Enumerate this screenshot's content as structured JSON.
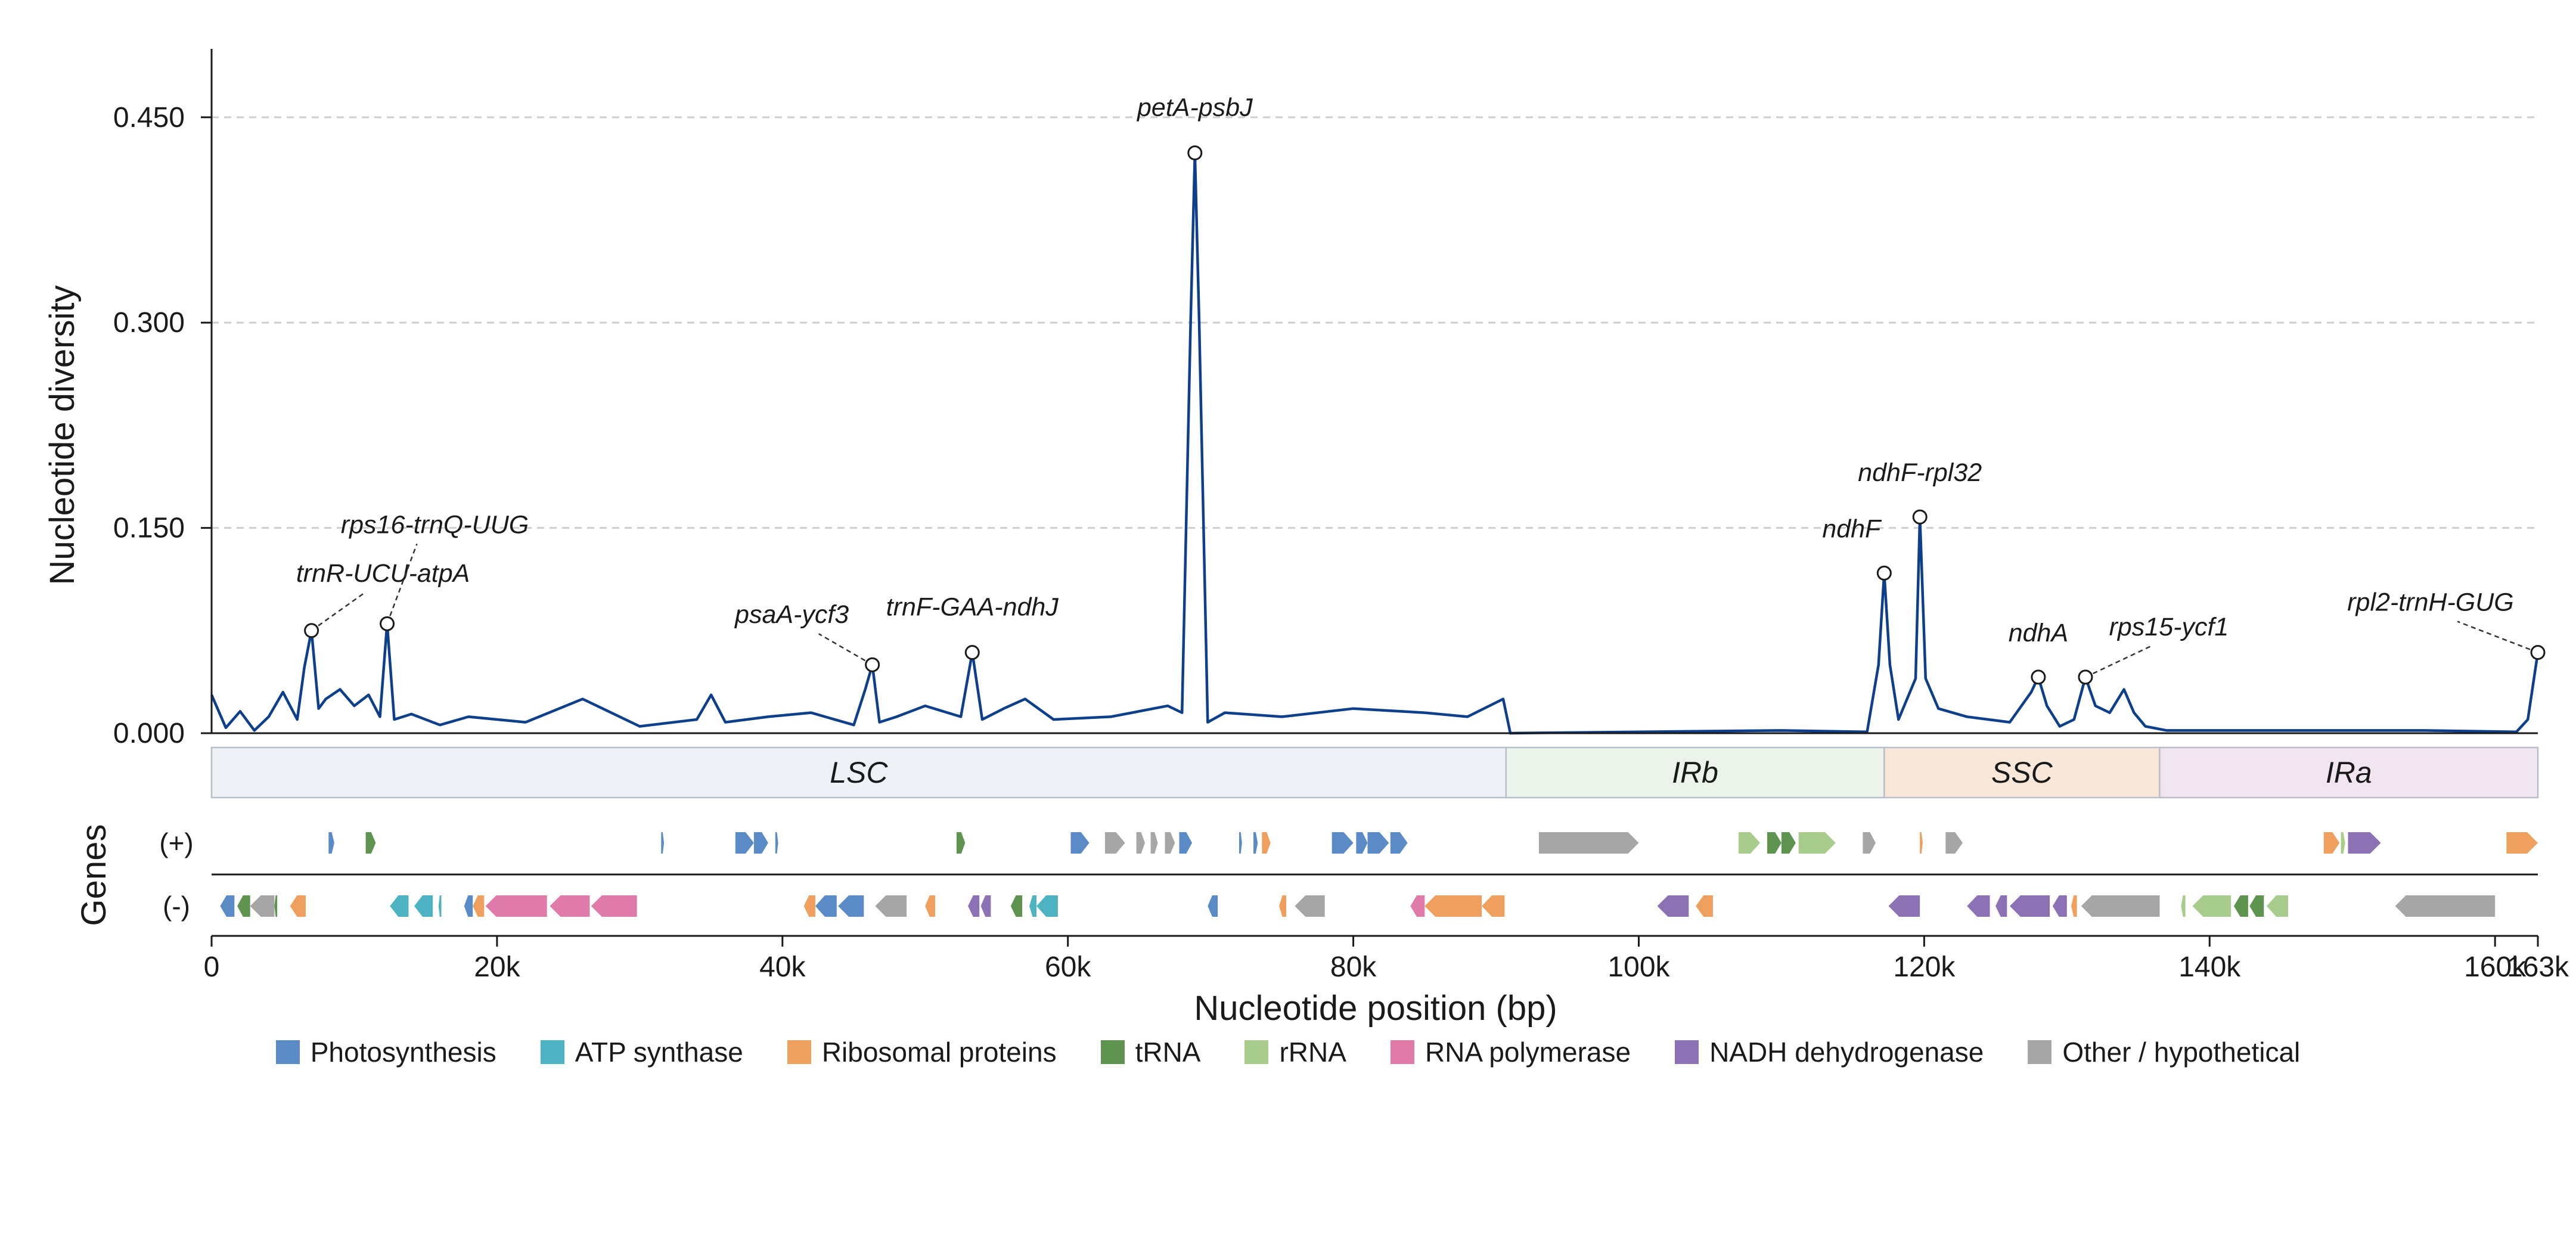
{
  "chart_data": {
    "type": "line",
    "ylabel": "Nucleotide diversity",
    "xlabel": "Nucleotide position (bp)",
    "xlim": [
      0,
      163000
    ],
    "ylim": [
      0,
      0.5
    ],
    "yticks": [
      0,
      0.15,
      0.3,
      0.45
    ],
    "ytick_labels": [
      "0.000",
      "0.150",
      "0.300",
      "0.450"
    ],
    "xticks": [
      0,
      20000,
      40000,
      60000,
      80000,
      100000,
      120000,
      140000,
      160000,
      163000
    ],
    "xtick_labels": [
      "0",
      "20k",
      "40k",
      "60k",
      "80k",
      "100k",
      "120k",
      "140k",
      "160k",
      "163k"
    ],
    "grid": "y dashed",
    "line_color": "#0d3f8a",
    "series": [
      {
        "x": [
          0,
          1000,
          2000,
          3000,
          4000,
          5000,
          6000,
          6500,
          7000,
          7500,
          8000,
          9000,
          10000,
          11000,
          11800,
          12300,
          12800,
          14000,
          16000,
          18000,
          22000,
          26000,
          30000,
          34000,
          35000,
          36000,
          39000,
          42000,
          45000,
          45800,
          46300,
          46800,
          48000,
          50000,
          52500,
          53300,
          54000,
          55500,
          57000,
          59000,
          63000,
          67000,
          68000,
          68600,
          68900,
          69200,
          69800,
          71000,
          75000,
          80000,
          85000,
          88000,
          90500,
          91000,
          100000,
          110000,
          116000,
          116800,
          117200,
          117600,
          118200,
          119400,
          119700,
          120100,
          121000,
          123000,
          126000,
          127500,
          128000,
          128600,
          129500,
          130500,
          131300,
          132000,
          133000,
          134000,
          134700,
          135500,
          137000,
          145000,
          155000,
          161500,
          162300,
          163000
        ],
        "y": [
          0.028,
          0.004,
          0.016,
          0.002,
          0.012,
          0.03,
          0.01,
          0.048,
          0.075,
          0.018,
          0.025,
          0.032,
          0.02,
          0.028,
          0.012,
          0.08,
          0.01,
          0.014,
          0.006,
          0.012,
          0.008,
          0.025,
          0.005,
          0.01,
          0.028,
          0.008,
          0.012,
          0.015,
          0.006,
          0.032,
          0.05,
          0.008,
          0.012,
          0.02,
          0.012,
          0.059,
          0.01,
          0.018,
          0.025,
          0.01,
          0.012,
          0.02,
          0.015,
          0.3,
          0.424,
          0.3,
          0.008,
          0.015,
          0.012,
          0.018,
          0.015,
          0.012,
          0.025,
          0.0,
          0.001,
          0.002,
          0.001,
          0.05,
          0.117,
          0.05,
          0.01,
          0.04,
          0.158,
          0.04,
          0.018,
          0.012,
          0.008,
          0.03,
          0.041,
          0.02,
          0.005,
          0.01,
          0.041,
          0.02,
          0.015,
          0.032,
          0.015,
          0.005,
          0.002,
          0.002,
          0.002,
          0.001,
          0.01,
          0.059
        ]
      }
    ],
    "annotations": [
      {
        "text": "trnR-UCU-atpA",
        "x": 7000,
        "y": 0.075
      },
      {
        "text": "rps16-trnQ-UUG",
        "x": 12300,
        "y": 0.08
      },
      {
        "text": "psaA-ycf3",
        "x": 46300,
        "y": 0.05
      },
      {
        "text": "trnF-GAA-ndhJ",
        "x": 53300,
        "y": 0.059
      },
      {
        "text": "petA-psbJ",
        "x": 68900,
        "y": 0.424
      },
      {
        "text": "ndhF",
        "x": 117200,
        "y": 0.117
      },
      {
        "text": "ndhF-rpl32",
        "x": 119700,
        "y": 0.158
      },
      {
        "text": "ndhA",
        "x": 128000,
        "y": 0.041
      },
      {
        "text": "rps15-ycf1",
        "x": 131300,
        "y": 0.041
      },
      {
        "text": "rpl2-trnH-GUG",
        "x": 163000,
        "y": 0.059
      }
    ],
    "regions": [
      {
        "name": "LSC",
        "start": 0,
        "end": 90700,
        "color": "#eef2f6"
      },
      {
        "name": "IRb",
        "start": 90700,
        "end": 117200,
        "color": "#ecf3ea"
      },
      {
        "name": "SSC",
        "start": 117200,
        "end": 136500,
        "color": "#f9e8da"
      },
      {
        "name": "IRa",
        "start": 136500,
        "end": 163000,
        "color": "#f1e5f1"
      }
    ],
    "gene_track_label": "Genes",
    "strand_labels": [
      "(+)",
      "(-)"
    ],
    "gene_categories": [
      {
        "name": "Photosynthesis",
        "color": "#5b8bc6"
      },
      {
        "name": "ATP synthase",
        "color": "#4db3c3"
      },
      {
        "name": "Ribosomal proteins",
        "color": "#f0a05e"
      },
      {
        "name": "tRNA",
        "color": "#5f9450"
      },
      {
        "name": "rRNA",
        "color": "#a8cc8c"
      },
      {
        "name": "RNA polymerase",
        "color": "#e07aa8"
      },
      {
        "name": "NADH dehydrogenase",
        "color": "#8c72b5"
      },
      {
        "name": "Other / hypothetical",
        "color": "#a6a6a6"
      }
    ],
    "genes_plus": [
      {
        "start": 8200,
        "end": 8600,
        "cat": 0
      },
      {
        "start": 10800,
        "end": 11500,
        "cat": 3
      },
      {
        "start": 31500,
        "end": 31700,
        "cat": 0
      },
      {
        "start": 36700,
        "end": 38000,
        "cat": 0
      },
      {
        "start": 38000,
        "end": 39000,
        "cat": 0
      },
      {
        "start": 39500,
        "end": 39700,
        "cat": 0
      },
      {
        "start": 52200,
        "end": 52800,
        "cat": 3
      },
      {
        "start": 60200,
        "end": 61500,
        "cat": 0
      },
      {
        "start": 62600,
        "end": 64000,
        "cat": 7
      },
      {
        "start": 64800,
        "end": 65400,
        "cat": 7
      },
      {
        "start": 65800,
        "end": 66300,
        "cat": 7
      },
      {
        "start": 66800,
        "end": 67500,
        "cat": 7
      },
      {
        "start": 67800,
        "end": 68700,
        "cat": 0
      },
      {
        "start": 72000,
        "end": 72200,
        "cat": 0
      },
      {
        "start": 73000,
        "end": 73300,
        "cat": 0
      },
      {
        "start": 73600,
        "end": 74200,
        "cat": 2
      },
      {
        "start": 78500,
        "end": 80000,
        "cat": 0
      },
      {
        "start": 80200,
        "end": 81000,
        "cat": 0
      },
      {
        "start": 81000,
        "end": 82500,
        "cat": 0
      },
      {
        "start": 82600,
        "end": 83800,
        "cat": 0
      },
      {
        "start": 93000,
        "end": 100000,
        "cat": 7
      },
      {
        "start": 107000,
        "end": 108500,
        "cat": 4
      },
      {
        "start": 109000,
        "end": 110000,
        "cat": 3
      },
      {
        "start": 110000,
        "end": 111000,
        "cat": 3
      },
      {
        "start": 111200,
        "end": 113800,
        "cat": 4
      },
      {
        "start": 115700,
        "end": 116600,
        "cat": 7
      },
      {
        "start": 119700,
        "end": 119900,
        "cat": 2
      },
      {
        "start": 121500,
        "end": 122700,
        "cat": 7
      },
      {
        "start": 148000,
        "end": 149100,
        "cat": 2
      },
      {
        "start": 149200,
        "end": 149500,
        "cat": 4
      },
      {
        "start": 149700,
        "end": 152000,
        "cat": 6
      },
      {
        "start": 160800,
        "end": 163000,
        "cat": 2
      }
    ],
    "genes_minus": [
      {
        "start": 600,
        "end": 1600,
        "cat": 0
      },
      {
        "start": 1800,
        "end": 2700,
        "cat": 3
      },
      {
        "start": 2700,
        "end": 4400,
        "cat": 7
      },
      {
        "start": 4400,
        "end": 4600,
        "cat": 3
      },
      {
        "start": 5500,
        "end": 6600,
        "cat": 2
      },
      {
        "start": 12500,
        "end": 13800,
        "cat": 1
      },
      {
        "start": 14200,
        "end": 15500,
        "cat": 1
      },
      {
        "start": 15900,
        "end": 16100,
        "cat": 1
      },
      {
        "start": 17700,
        "end": 18300,
        "cat": 0
      },
      {
        "start": 18300,
        "end": 19100,
        "cat": 2
      },
      {
        "start": 19200,
        "end": 23500,
        "cat": 5
      },
      {
        "start": 23700,
        "end": 26500,
        "cat": 5
      },
      {
        "start": 26600,
        "end": 29800,
        "cat": 5
      },
      {
        "start": 41500,
        "end": 42300,
        "cat": 2
      },
      {
        "start": 42300,
        "end": 43800,
        "cat": 0
      },
      {
        "start": 43900,
        "end": 45700,
        "cat": 0
      },
      {
        "start": 46500,
        "end": 48700,
        "cat": 7
      },
      {
        "start": 50000,
        "end": 50700,
        "cat": 2
      },
      {
        "start": 53000,
        "end": 53800,
        "cat": 6
      },
      {
        "start": 53900,
        "end": 54600,
        "cat": 6
      },
      {
        "start": 56000,
        "end": 56800,
        "cat": 3
      },
      {
        "start": 57300,
        "end": 57800,
        "cat": 1
      },
      {
        "start": 57800,
        "end": 59300,
        "cat": 1
      },
      {
        "start": 69800,
        "end": 70500,
        "cat": 0
      },
      {
        "start": 74800,
        "end": 75300,
        "cat": 2
      },
      {
        "start": 75900,
        "end": 78000,
        "cat": 7
      },
      {
        "start": 84000,
        "end": 85000,
        "cat": 5
      },
      {
        "start": 85000,
        "end": 89000,
        "cat": 2
      },
      {
        "start": 89000,
        "end": 90600,
        "cat": 2
      },
      {
        "start": 101300,
        "end": 103500,
        "cat": 6
      },
      {
        "start": 104000,
        "end": 105200,
        "cat": 2
      },
      {
        "start": 117500,
        "end": 119700,
        "cat": 6
      },
      {
        "start": 123000,
        "end": 124600,
        "cat": 6
      },
      {
        "start": 125000,
        "end": 125800,
        "cat": 6
      },
      {
        "start": 126000,
        "end": 128800,
        "cat": 6
      },
      {
        "start": 129000,
        "end": 130000,
        "cat": 6
      },
      {
        "start": 130300,
        "end": 130700,
        "cat": 2
      },
      {
        "start": 131000,
        "end": 136500,
        "cat": 7
      },
      {
        "start": 138000,
        "end": 138300,
        "cat": 4
      },
      {
        "start": 138800,
        "end": 141500,
        "cat": 4
      },
      {
        "start": 141700,
        "end": 142700,
        "cat": 3
      },
      {
        "start": 142800,
        "end": 143800,
        "cat": 3
      },
      {
        "start": 144000,
        "end": 145500,
        "cat": 4
      },
      {
        "start": 153000,
        "end": 160000,
        "cat": 7
      }
    ]
  }
}
